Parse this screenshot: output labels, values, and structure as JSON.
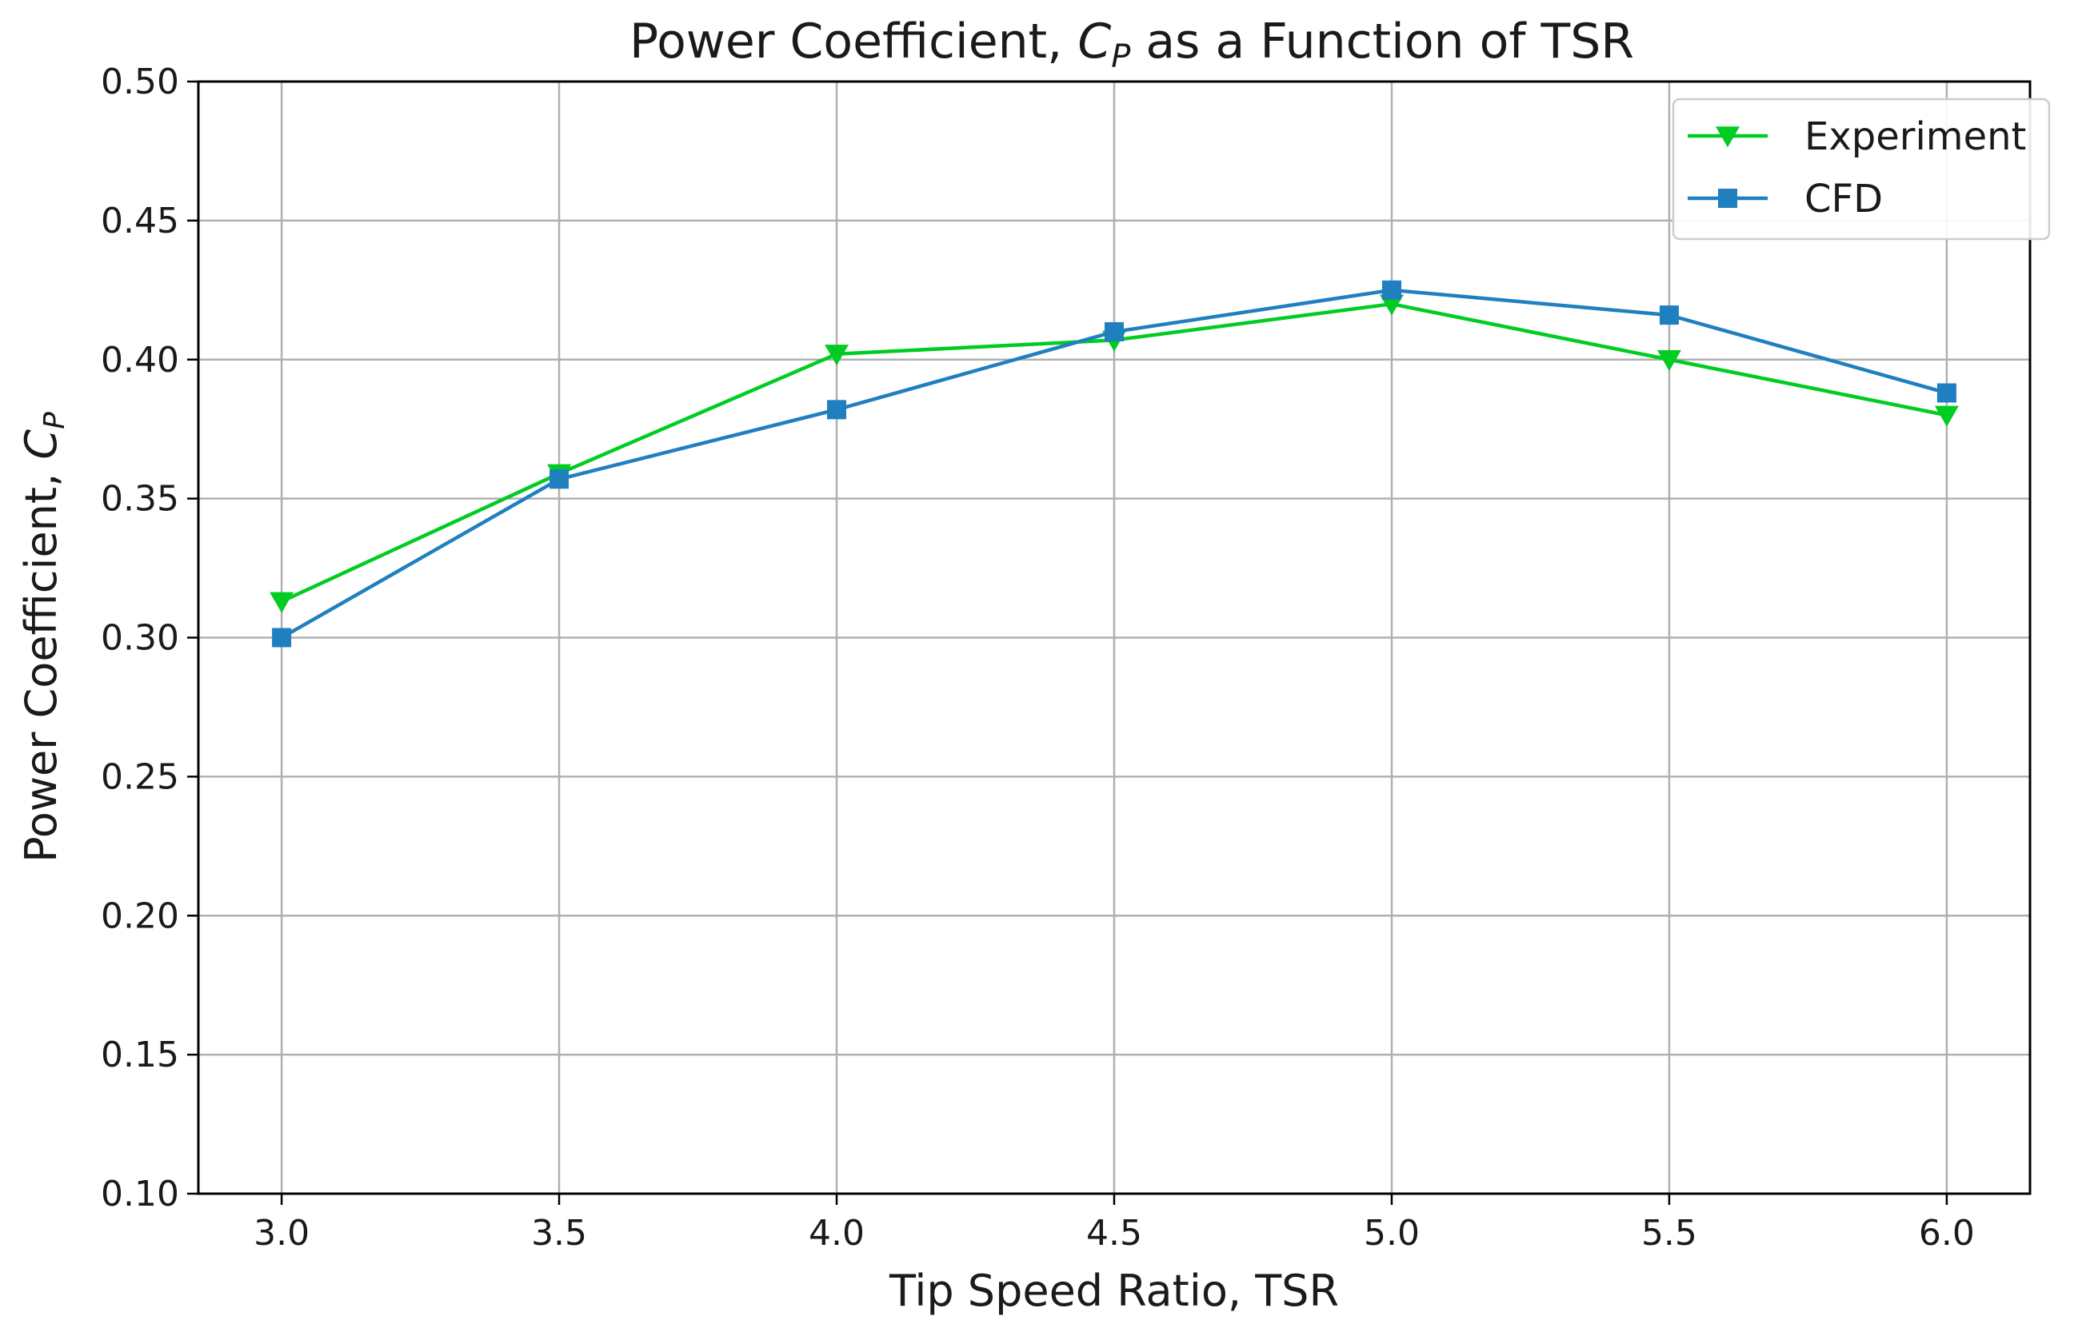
{
  "chart_data": {
    "type": "line",
    "title_parts": [
      "Power Coefficient, ",
      "C",
      "P",
      " as a Function of TSR"
    ],
    "xlabel": "Tip Speed Ratio, TSR",
    "ylabel_parts": [
      "Power Coefficient, ",
      "C",
      "P"
    ],
    "xlim": [
      2.85,
      6.15
    ],
    "ylim": [
      0.1,
      0.5
    ],
    "xticks": [
      "3.0",
      "3.5",
      "4.0",
      "4.5",
      "5.0",
      "5.5",
      "6.0"
    ],
    "yticks": [
      "0.10",
      "0.15",
      "0.20",
      "0.25",
      "0.30",
      "0.35",
      "0.40",
      "0.45",
      "0.50"
    ],
    "grid": true,
    "legend_position": "top-right",
    "x": [
      3.0,
      3.5,
      4.0,
      4.5,
      5.0,
      5.5,
      6.0
    ],
    "series": [
      {
        "name": "Experiment",
        "color": "#00cc22",
        "marker": "triangle-down",
        "values": [
          0.313,
          0.359,
          0.402,
          0.407,
          0.42,
          0.4,
          0.38
        ]
      },
      {
        "name": "CFD",
        "color": "#1f7fbf",
        "marker": "square",
        "values": [
          0.3,
          0.357,
          0.382,
          0.41,
          0.425,
          0.416,
          0.388
        ]
      }
    ]
  }
}
